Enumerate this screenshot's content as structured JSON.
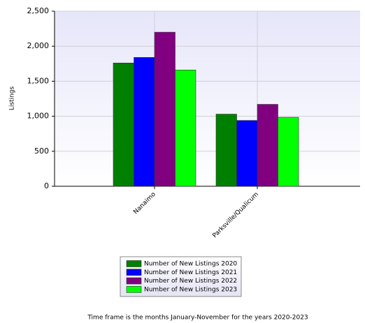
{
  "chart_data": {
    "type": "bar",
    "y_label": "Listings",
    "categories": [
      "Nanaimo",
      "Parksville/Qualicum"
    ],
    "series": [
      {
        "name": "Number of New Listings 2020",
        "color": "#008000",
        "values": [
          1760,
          1030
        ]
      },
      {
        "name": "Number of New Listings 2021",
        "color": "#0000ff",
        "values": [
          1840,
          940
        ]
      },
      {
        "name": "Number of New Listings 2022",
        "color": "#800080",
        "values": [
          2200,
          1170
        ]
      },
      {
        "name": "Number of New Listings 2023",
        "color": "#00ff00",
        "values": [
          1660,
          985
        ]
      }
    ],
    "ylim": [
      0,
      2500
    ],
    "yticks": [
      0,
      500,
      {
        "value": 1000,
        "label": "1,000"
      },
      {
        "value": 1500,
        "label": "1,500"
      },
      {
        "value": 2000,
        "label": "2,000"
      },
      {
        "value": 2500,
        "label": "2,500"
      }
    ],
    "grid": true,
    "legend": "bottom",
    "footnote": "Time frame is the months January-November for the years 2020-2023"
  }
}
